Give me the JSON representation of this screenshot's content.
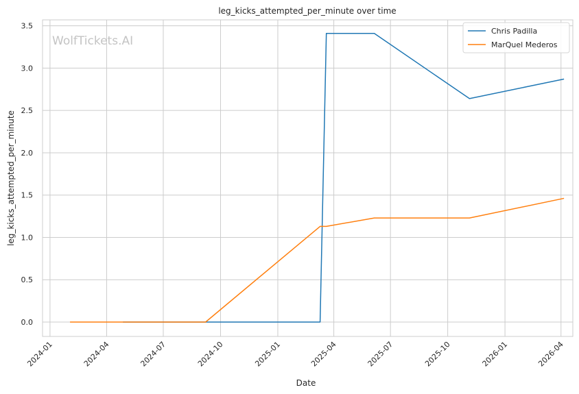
{
  "chart_data": {
    "type": "line",
    "title": "leg_kicks_attempted_per_minute over time",
    "xlabel": "Date",
    "ylabel": "leg_kicks_attempted_per_minute",
    "watermark": "WolfTickets.AI",
    "x_tick_labels": [
      "2024-01",
      "2024-04",
      "2024-07",
      "2024-10",
      "2025-01",
      "2025-04",
      "2025-07",
      "2025-10",
      "2026-01",
      "2026-04"
    ],
    "y_tick_labels": [
      "0.0",
      "0.5",
      "1.0",
      "1.5",
      "2.0",
      "2.5",
      "3.0",
      "3.5"
    ],
    "ylim": [
      -0.17,
      3.57
    ],
    "xlim": [
      "2023-12-20",
      "2026-04-20"
    ],
    "grid": true,
    "legend_position": "top-right",
    "series": [
      {
        "name": "Chris Padilla",
        "color": "#1f77b4",
        "points": [
          {
            "x": "2024-04-28",
            "y": 0.0
          },
          {
            "x": "2025-03-10",
            "y": 0.0
          },
          {
            "x": "2025-03-20",
            "y": 3.41
          },
          {
            "x": "2025-06-05",
            "y": 3.41
          },
          {
            "x": "2025-11-05",
            "y": 2.64
          },
          {
            "x": "2026-04-05",
            "y": 2.87
          }
        ]
      },
      {
        "name": "MarQuel Mederos",
        "color": "#ff7f0e",
        "points": [
          {
            "x": "2024-02-03",
            "y": 0.0
          },
          {
            "x": "2024-09-07",
            "y": 0.0
          },
          {
            "x": "2025-03-10",
            "y": 1.13
          },
          {
            "x": "2025-03-20",
            "y": 1.13
          },
          {
            "x": "2025-06-05",
            "y": 1.23
          },
          {
            "x": "2025-11-05",
            "y": 1.23
          },
          {
            "x": "2026-04-05",
            "y": 1.46
          }
        ]
      }
    ]
  }
}
